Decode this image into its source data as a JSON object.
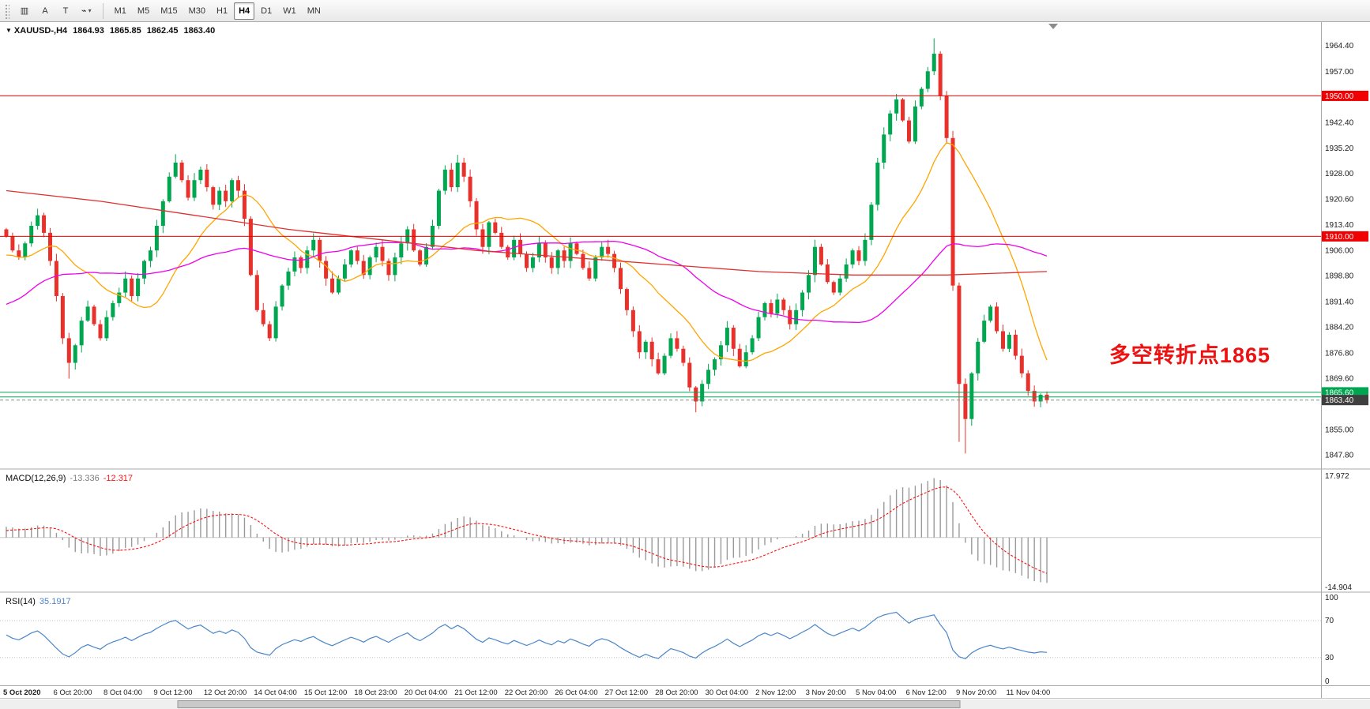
{
  "toolbar": {
    "left_buttons": [
      {
        "name": "chart-window",
        "glyph": "▥"
      },
      {
        "name": "insert-text",
        "glyph": "A"
      },
      {
        "name": "text-box",
        "glyph": "T"
      },
      {
        "name": "line-studies",
        "glyph": "⌁",
        "caret": true
      }
    ],
    "timeframes": [
      "M1",
      "M5",
      "M15",
      "M30",
      "H1",
      "H4",
      "D1",
      "W1",
      "MN"
    ],
    "active_timeframe": "H4"
  },
  "header": {
    "collapse_glyph": "▼",
    "symbol_period": "XAUUSD-,H4",
    "open": "1864.93",
    "high": "1865.85",
    "low": "1862.45",
    "close": "1863.40"
  },
  "annotation": {
    "text": "多空转折点1865"
  },
  "indicators": {
    "macd": {
      "label": "MACD(12,26,9)",
      "value_main": "-13.336",
      "value_signal": "-12.317",
      "axis_max": "17.972",
      "axis_min": "-14.904"
    },
    "rsi": {
      "label": "RSI(14)",
      "value": "35.1917",
      "axis_labels": [
        "100",
        "70",
        "30",
        "0"
      ],
      "levels": [
        70,
        30
      ]
    }
  },
  "axis": {
    "price_labels": [
      1964.4,
      1957.0,
      1942.4,
      1935.2,
      1928.0,
      1920.6,
      1913.4,
      1906.0,
      1898.8,
      1891.4,
      1884.2,
      1876.8,
      1869.6,
      1855.0,
      1847.8
    ],
    "time_labels": [
      "5 Oct 2020",
      "6 Oct 20:00",
      "8 Oct 04:00",
      "9 Oct 12:00",
      "12 Oct 20:00",
      "14 Oct 04:00",
      "15 Oct 12:00",
      "18 Oct 23:00",
      "20 Oct 04:00",
      "21 Oct 12:00",
      "22 Oct 20:00",
      "26 Oct 04:00",
      "27 Oct 12:00",
      "28 Oct 20:00",
      "30 Oct 04:00",
      "2 Nov 12:00",
      "3 Nov 20:00",
      "5 Nov 04:00",
      "6 Nov 12:00",
      "9 Nov 20:00",
      "11 Nov 04:00"
    ]
  },
  "levels": {
    "hlines": [
      {
        "price": 1950.0,
        "color": "#F00000",
        "badge": "1950.00"
      },
      {
        "price": 1910.0,
        "color": "#F00000",
        "badge": "1910.00"
      },
      {
        "price": 1865.6,
        "color": "#00A550",
        "badge": "1865.60"
      },
      {
        "price": 1864.3,
        "color": "#00A550",
        "badge": null
      }
    ],
    "price_line": {
      "price": 1863.4,
      "badge": "1863.40",
      "color": "#8A8A8A",
      "badge_color": "#3F3F3F"
    }
  },
  "colors": {
    "up": "#00A650",
    "down": "#E8312A",
    "ma_fast": "#FFA500",
    "ma_mid": "#EE00EE",
    "ma_slow": "#E03030",
    "macd_hist": "#9A9A9A",
    "macd_signal": "#FF1010",
    "rsi": "#4A86C9",
    "annotation": "#EE1111"
  },
  "chart_data": {
    "type": "candlestick",
    "symbol": "XAUUSD-",
    "timeframe": "H4",
    "title": "XAUUSD-,H4 1864.93 1865.85 1862.45 1863.40",
    "ylim": [
      1844,
      1971
    ],
    "pre_closes": [
      1958,
      1952,
      1946,
      1938,
      1930,
      1922,
      1916,
      1910,
      1902,
      1894,
      1886,
      1878,
      1870,
      1862,
      1856,
      1860,
      1866,
      1872,
      1868,
      1864,
      1870,
      1876,
      1882,
      1878,
      1884,
      1890,
      1886,
      1892,
      1898,
      1894,
      1900,
      1906,
      1902,
      1896,
      1902,
      1908,
      1912,
      1908,
      1904,
      1900,
      1896,
      1892,
      1896,
      1902,
      1906,
      1910,
      1907,
      1904,
      1908,
      1912
    ],
    "closes": [
      1910,
      1906,
      1904,
      1908,
      1913,
      1916,
      1911,
      1903,
      1893,
      1881,
      1874,
      1879,
      1886,
      1890,
      1885,
      1881,
      1887,
      1891,
      1894,
      1898,
      1893,
      1898,
      1903,
      1906,
      1913,
      1920,
      1927,
      1931,
      1926,
      1921,
      1926,
      1929,
      1924,
      1919,
      1923,
      1920,
      1926,
      1923,
      1915,
      1899,
      1889,
      1885,
      1881,
      1890,
      1896,
      1900,
      1904,
      1901,
      1906,
      1909,
      1903,
      1898,
      1894,
      1898,
      1902,
      1906,
      1903,
      1899,
      1904,
      1907,
      1903,
      1899,
      1904,
      1908,
      1912,
      1906,
      1902,
      1907,
      1913,
      1923,
      1929,
      1924,
      1931,
      1927,
      1920,
      1912,
      1907,
      1914,
      1911,
      1907,
      1904,
      1909,
      1905,
      1901,
      1904,
      1908,
      1904,
      1901,
      1906,
      1903,
      1908,
      1905,
      1901,
      1898,
      1904,
      1907,
      1905,
      1901,
      1895,
      1889,
      1883,
      1877,
      1880,
      1875,
      1871,
      1876,
      1881,
      1878,
      1874,
      1867,
      1863,
      1868,
      1872,
      1875,
      1879,
      1884,
      1878,
      1873,
      1877,
      1881,
      1887,
      1891,
      1888,
      1892,
      1889,
      1885,
      1889,
      1894,
      1899,
      1907,
      1902,
      1897,
      1894,
      1898,
      1902,
      1906,
      1903,
      1909,
      1919,
      1931,
      1939,
      1945,
      1949,
      1943,
      1937,
      1947,
      1952,
      1957,
      1962,
      1950,
      1938,
      1896,
      1868,
      1858,
      1871,
      1880,
      1886,
      1890,
      1883,
      1878,
      1882,
      1876,
      1871,
      1866,
      1863,
      1864.9,
      1863.4
    ],
    "wick_overrides": {
      "10": {
        "l": 1869.5
      },
      "27": {
        "h": 1933.4
      },
      "72": {
        "h": 1933.2
      },
      "110": {
        "l": 1859.9
      },
      "148": {
        "h": 1966.4
      },
      "152": {
        "l": 1851.5
      },
      "153": {
        "l": 1848.2
      }
    },
    "last_candle": [
      1864.93,
      1865.85,
      1862.45,
      1863.4
    ],
    "moving_averages": [
      {
        "name": "ma-fast-orange",
        "period": 16,
        "color_key": "ma_fast"
      },
      {
        "name": "ma-mid-magenta",
        "period": 40,
        "color_key": "ma_mid"
      },
      {
        "name": "ma-slow-red",
        "color_key": "ma_slow",
        "waypoints": [
          [
            0,
            1923
          ],
          [
            15,
            1920
          ],
          [
            30,
            1916
          ],
          [
            45,
            1912
          ],
          [
            60,
            1909
          ],
          [
            75,
            1906
          ],
          [
            90,
            1904
          ],
          [
            105,
            1902
          ],
          [
            120,
            1900
          ],
          [
            135,
            1899
          ],
          [
            150,
            1899
          ],
          [
            166,
            1900
          ]
        ]
      }
    ],
    "macd": {
      "fast": 12,
      "slow": 26,
      "signal": 9
    },
    "rsi_period": 14
  }
}
